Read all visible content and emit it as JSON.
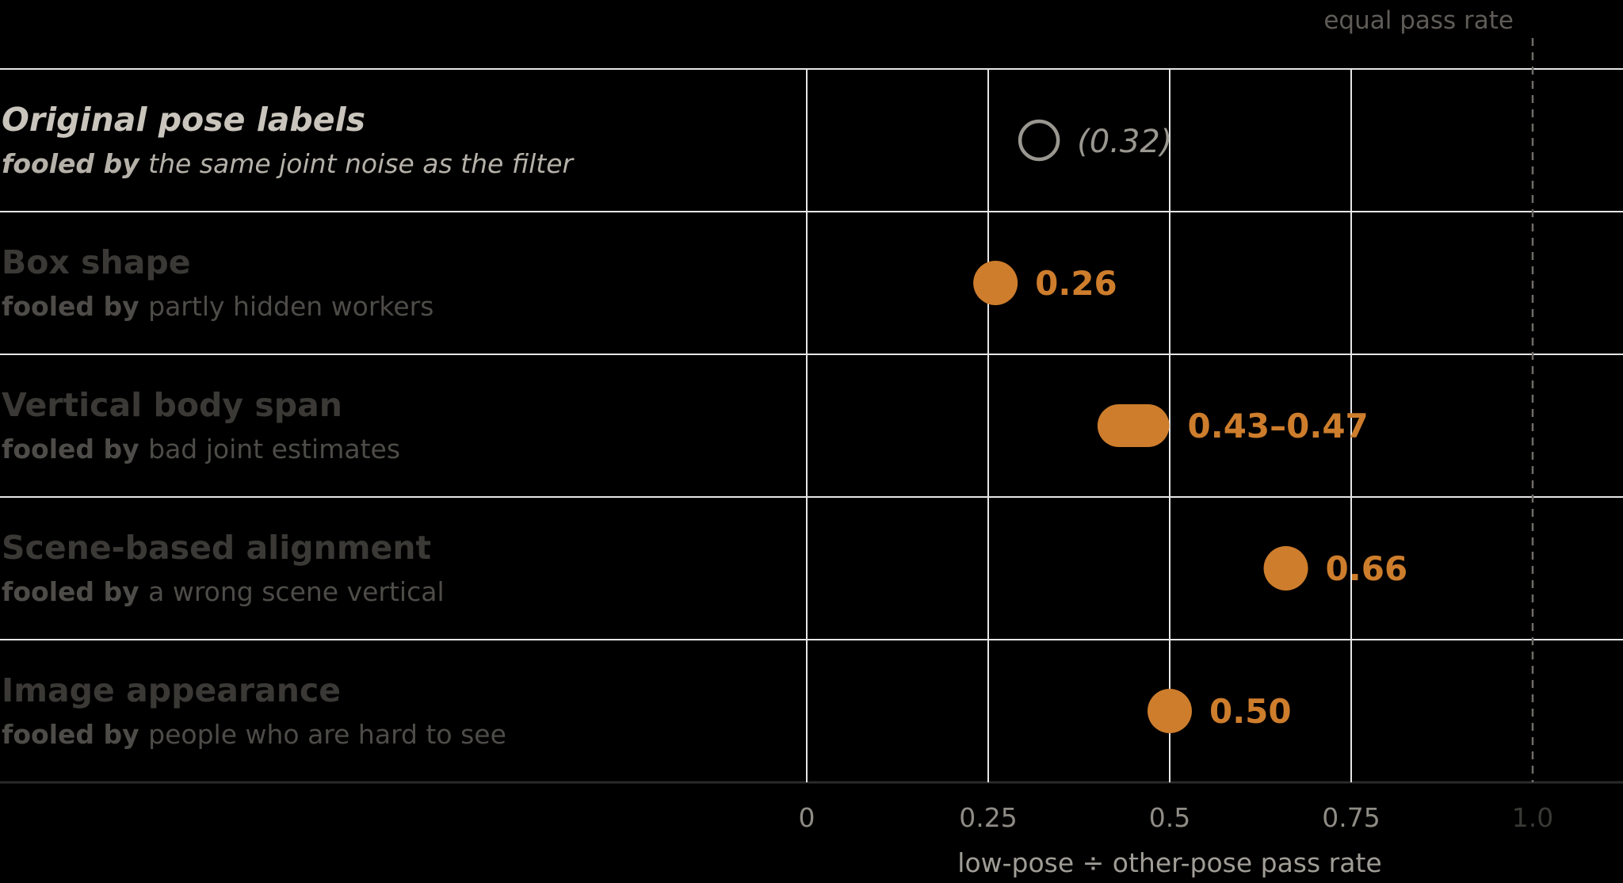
{
  "chart_data": {
    "type": "scatter",
    "xlabel": "low-pose ÷ other-pose pass rate",
    "xlim": [
      0,
      1.0
    ],
    "xticks": [
      {
        "value": 0,
        "label": "0"
      },
      {
        "value": 0.25,
        "label": "0.25"
      },
      {
        "value": 0.5,
        "label": "0.5"
      },
      {
        "value": 0.75,
        "label": "0.75"
      },
      {
        "value": 1.0,
        "label": "1.0"
      }
    ],
    "reference_line": {
      "value": 1.0,
      "label": "equal pass rate"
    },
    "rows": [
      {
        "title": "Original pose labels",
        "fooled_prefix": "fooled by",
        "fooled_text": "the same joint noise as the filter",
        "value": 0.32,
        "value_label": "(0.32)",
        "marker": "hollow",
        "emphasized": true
      },
      {
        "title": "Box shape",
        "fooled_prefix": "fooled by",
        "fooled_text": "partly hidden workers",
        "value": 0.26,
        "value_label": "0.26",
        "marker": "filled",
        "emphasized": false
      },
      {
        "title": "Vertical body span",
        "fooled_prefix": "fooled by",
        "fooled_text": "bad joint estimates",
        "range": [
          0.43,
          0.47
        ],
        "value_label": "0.43–0.47",
        "marker": "range",
        "emphasized": false
      },
      {
        "title": "Scene-based alignment",
        "fooled_prefix": "fooled by",
        "fooled_text": "a wrong scene vertical",
        "value": 0.66,
        "value_label": "0.66",
        "marker": "filled",
        "emphasized": false
      },
      {
        "title": "Image appearance",
        "fooled_prefix": "fooled by",
        "fooled_text": "people who are hard to see",
        "value": 0.5,
        "value_label": "0.50",
        "marker": "filled",
        "emphasized": false
      }
    ]
  },
  "colors": {
    "background": "#000000",
    "accent": "#cd7d2c",
    "grid": "#e6e6e6",
    "hollow_marker": "#9a9790",
    "title_emphasized": "#c9c5bd",
    "title_muted": "#3a3936",
    "subtitle_emphasized": "#b5b1a9",
    "subtitle_muted": "#4e4c48",
    "tick_label": "#8f8c85",
    "tick_label_muted": "#3a3936",
    "axis_title": "#a09d96",
    "reference": "#6f6c66"
  }
}
